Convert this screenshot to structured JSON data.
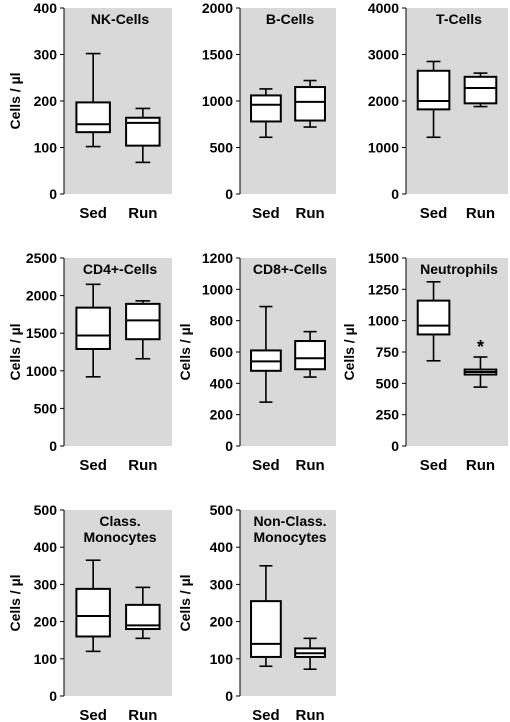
{
  "chart_data": [
    {
      "type": "boxplot",
      "title": [
        "NK-Cells"
      ],
      "ylabel": "Cells / µl",
      "ylim": [
        0,
        400
      ],
      "yticks": [
        "0",
        "100",
        "200",
        "300",
        "400"
      ],
      "categories": [
        "Sed",
        "Run"
      ],
      "boxes": [
        {
          "min": 102,
          "q1": 133,
          "median": 150,
          "q3": 197,
          "max": 302
        },
        {
          "min": 68,
          "q1": 104,
          "median": 153,
          "q3": 164,
          "max": 184
        }
      ],
      "annotations": []
    },
    {
      "type": "boxplot",
      "title": [
        "B-Cells"
      ],
      "ylabel": "",
      "ylim": [
        0,
        2000
      ],
      "yticks": [
        "0",
        "500",
        "1000",
        "1500",
        "2000"
      ],
      "categories": [
        "Sed",
        "Run"
      ],
      "boxes": [
        {
          "min": 610,
          "q1": 780,
          "median": 960,
          "q3": 1060,
          "max": 1130
        },
        {
          "min": 720,
          "q1": 790,
          "median": 990,
          "q3": 1150,
          "max": 1220
        }
      ],
      "annotations": []
    },
    {
      "type": "boxplot",
      "title": [
        "T-Cells"
      ],
      "ylabel": "",
      "ylim": [
        0,
        4000
      ],
      "yticks": [
        "0",
        "1000",
        "2000",
        "3000",
        "4000"
      ],
      "categories": [
        "Sed",
        "Run"
      ],
      "boxes": [
        {
          "min": 1220,
          "q1": 1820,
          "median": 2000,
          "q3": 2650,
          "max": 2850
        },
        {
          "min": 1880,
          "q1": 1950,
          "median": 2280,
          "q3": 2520,
          "max": 2600
        }
      ],
      "annotations": []
    },
    {
      "type": "boxplot",
      "title": [
        "CD4+-Cells"
      ],
      "ylabel": "Cells / µl",
      "ylim": [
        0,
        2500
      ],
      "yticks": [
        "0",
        "500",
        "1000",
        "1500",
        "2000",
        "2500"
      ],
      "categories": [
        "Sed",
        "Run"
      ],
      "boxes": [
        {
          "min": 920,
          "q1": 1290,
          "median": 1470,
          "q3": 1840,
          "max": 2150
        },
        {
          "min": 1160,
          "q1": 1420,
          "median": 1670,
          "q3": 1890,
          "max": 1930
        }
      ],
      "annotations": []
    },
    {
      "type": "boxplot",
      "title": [
        "CD8+-Cells"
      ],
      "ylabel": "Cells / µl",
      "ylim": [
        0,
        1200
      ],
      "yticks": [
        "0",
        "200",
        "400",
        "600",
        "800",
        "1000",
        "1200"
      ],
      "categories": [
        "Sed",
        "Run"
      ],
      "boxes": [
        {
          "min": 280,
          "q1": 480,
          "median": 540,
          "q3": 610,
          "max": 890
        },
        {
          "min": 440,
          "q1": 490,
          "median": 560,
          "q3": 670,
          "max": 730
        }
      ],
      "annotations": []
    },
    {
      "type": "boxplot",
      "title": [
        "Neutrophils"
      ],
      "ylabel": "Cells / µl",
      "ylim": [
        0,
        1500
      ],
      "yticks": [
        "0",
        "250",
        "500",
        "750",
        "1000",
        "1250",
        "1500"
      ],
      "categories": [
        "Sed",
        "Run"
      ],
      "boxes": [
        {
          "min": 680,
          "q1": 890,
          "median": 960,
          "q3": 1160,
          "max": 1310
        },
        {
          "min": 470,
          "q1": 570,
          "median": 590,
          "q3": 610,
          "max": 710
        }
      ],
      "annotations": [
        {
          "category": "Run",
          "text": "*"
        }
      ]
    },
    {
      "type": "boxplot",
      "title": [
        "Class.",
        "Monocytes"
      ],
      "ylabel": "Cells / µl",
      "ylim": [
        0,
        500
      ],
      "yticks": [
        "0",
        "100",
        "200",
        "300",
        "400",
        "500"
      ],
      "categories": [
        "Sed",
        "Run"
      ],
      "boxes": [
        {
          "min": 120,
          "q1": 160,
          "median": 215,
          "q3": 288,
          "max": 365
        },
        {
          "min": 155,
          "q1": 180,
          "median": 190,
          "q3": 245,
          "max": 292
        }
      ],
      "annotations": []
    },
    {
      "type": "boxplot",
      "title": [
        "Non-Class.",
        "Monocytes"
      ],
      "ylabel": "Cells / µl",
      "ylim": [
        0,
        500
      ],
      "yticks": [
        "0",
        "100",
        "200",
        "300",
        "400",
        "500"
      ],
      "categories": [
        "Sed",
        "Run"
      ],
      "boxes": [
        {
          "min": 80,
          "q1": 105,
          "median": 140,
          "q3": 255,
          "max": 350
        },
        {
          "min": 72,
          "q1": 105,
          "median": 115,
          "q3": 128,
          "max": 155
        }
      ],
      "annotations": []
    }
  ]
}
